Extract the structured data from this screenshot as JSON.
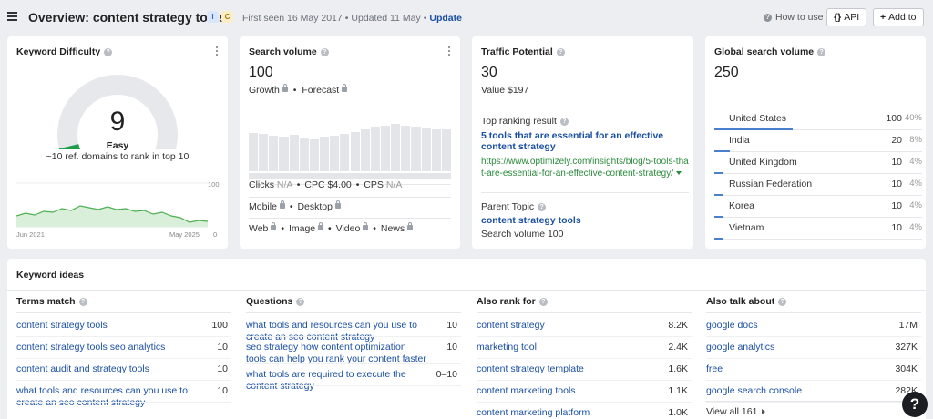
{
  "header": {
    "title": "Overview: content strategy tools",
    "badge_i": "I",
    "badge_c": "C",
    "first_seen": "First seen 16 May 2017",
    "updated": "Updated 11 May",
    "update_link": "Update",
    "how_to_use": "How to use",
    "api_label": "API",
    "add_to_label": "Add to"
  },
  "keyword_difficulty": {
    "title": "Keyword Difficulty",
    "value": "9",
    "level": "Easy",
    "note": "~10 ref. domains to rank in top 10",
    "chart_top": "100",
    "chart_bottom": "0",
    "date_start": "Jun 2021",
    "date_end": "May 2025",
    "difficulty_fraction": 0.09
  },
  "search_volume": {
    "title": "Search volume",
    "value": "100",
    "growth": "Growth",
    "forecast": "Forecast",
    "clicks_label": "Clicks",
    "clicks_val": "N/A",
    "cpc": "CPC $4.00",
    "cps_label": "CPS",
    "cps_val": "N/A",
    "mobile": "Mobile",
    "desktop": "Desktop",
    "web": "Web",
    "image": "Image",
    "video": "Video",
    "news": "News"
  },
  "traffic_potential": {
    "title": "Traffic Potential",
    "value": "30",
    "value_label": "Value $197",
    "top_result_label": "Top ranking result",
    "top_result_title": "5 tools that are essential for an effective content strategy",
    "top_result_url": "https://www.optimizely.com/insights/blog/5-tools-that-are-essential-for-an-effective-content-strategy/",
    "parent_label": "Parent Topic",
    "parent_topic": "content strategy tools",
    "parent_volume": "Search volume 100"
  },
  "global_volume": {
    "title": "Global search volume",
    "value": "250",
    "countries": [
      {
        "name": "United States",
        "vol": "100",
        "pct": "40%",
        "share": 0.4
      },
      {
        "name": "India",
        "vol": "20",
        "pct": "8%",
        "share": 0.08
      },
      {
        "name": "United Kingdom",
        "vol": "10",
        "pct": "4%",
        "share": 0.04
      },
      {
        "name": "Russian Federation",
        "vol": "10",
        "pct": "4%",
        "share": 0.04
      },
      {
        "name": "Korea",
        "vol": "10",
        "pct": "4%",
        "share": 0.04
      },
      {
        "name": "Vietnam",
        "vol": "10",
        "pct": "4%",
        "share": 0.04
      }
    ]
  },
  "keyword_ideas": {
    "title": "Keyword ideas",
    "view_all": "View all 161",
    "columns": [
      {
        "head": "Terms match",
        "rows": [
          {
            "kw": "content strategy tools",
            "val": "100"
          },
          {
            "kw": "content strategy tools seo analytics",
            "val": "10"
          },
          {
            "kw": "content audit and strategy tools",
            "val": "10"
          },
          {
            "kw": "what tools and resources can you use to create an seo content strategy",
            "val": "10"
          }
        ]
      },
      {
        "head": "Questions",
        "rows": [
          {
            "kw": "what tools and resources can you use to create an seo content strategy",
            "val": "10"
          },
          {
            "kw": "seo strategy how content optimization tools can help you rank your content faster",
            "val": "10"
          },
          {
            "kw": "what tools are required to execute the content strategy",
            "val": "0–10"
          }
        ]
      },
      {
        "head": "Also rank for",
        "rows": [
          {
            "kw": "content strategy",
            "val": "8.2K"
          },
          {
            "kw": "marketing tool",
            "val": "2.4K"
          },
          {
            "kw": "content strategy template",
            "val": "1.6K"
          },
          {
            "kw": "content marketing tools",
            "val": "1.1K"
          },
          {
            "kw": "content marketing platform",
            "val": "1.0K"
          }
        ]
      },
      {
        "head": "Also talk about",
        "rows": [
          {
            "kw": "google docs",
            "val": "17M"
          },
          {
            "kw": "google analytics",
            "val": "327K"
          },
          {
            "kw": "free",
            "val": "304K"
          },
          {
            "kw": "google search console",
            "val": "282K"
          }
        ]
      }
    ]
  },
  "help_label": "?",
  "colors": {
    "accent_link": "#1a4fa3",
    "kd_easy": "#1e9e4a",
    "chart_line": "#4caf50",
    "url_green": "#2a8a3c"
  }
}
